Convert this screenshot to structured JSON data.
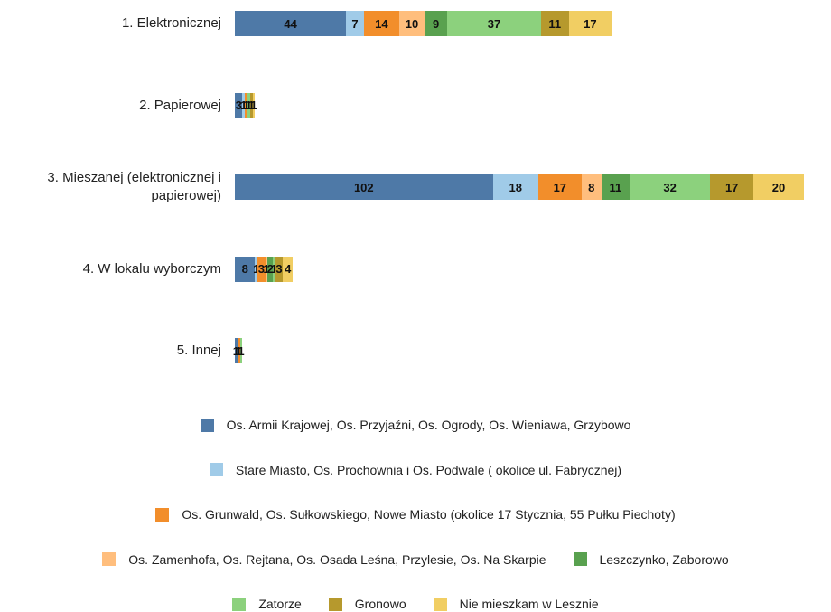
{
  "chart_data": {
    "type": "stacked-barh",
    "categories": [
      "1. Elektronicznej",
      "2. Papierowej",
      "3. Mieszanej (elektronicznej i papierowej)",
      "4. W lokalu wyborczym",
      "5. Innej"
    ],
    "series": [
      {
        "name": "Os. Armii Krajowej, Os. Przyjaźni, Os. Ogrody, Os. Wieniawa, Grzybowo",
        "color": "#4e79a7",
        "values": [
          44,
          3,
          102,
          8,
          1
        ]
      },
      {
        "name": "Stare Miasto, Os. Prochownia i Os. Podwale ( okolice ul. Fabrycznej)",
        "color": "#a0cbe8",
        "values": [
          7,
          1,
          18,
          1,
          0
        ]
      },
      {
        "name": "Os. Grunwald, Os. Sułkowskiego, Nowe Miasto (okolice 17 Stycznia, 55 Pułku Piechoty)",
        "color": "#f28e2b",
        "values": [
          14,
          1,
          17,
          3,
          1
        ]
      },
      {
        "name": "Os. Zamenhofa, Os. Rejtana, Os. Osada Leśna, Przylesie, Os. Na Skarpie",
        "color": "#ffbe7d",
        "values": [
          10,
          0,
          8,
          1,
          0
        ]
      },
      {
        "name": "Leszczynko, Zaborowo",
        "color": "#59a14f",
        "values": [
          9,
          0,
          11,
          2,
          0
        ]
      },
      {
        "name": "Zatorze",
        "color": "#8cd17d",
        "values": [
          37,
          1,
          32,
          1,
          1
        ]
      },
      {
        "name": "Gronowo",
        "color": "#b6992d",
        "values": [
          11,
          1,
          17,
          3,
          0
        ]
      },
      {
        "name": "Nie mieszkam w Lesznie",
        "color": "#f1ce63",
        "values": [
          17,
          1,
          20,
          4,
          0
        ]
      }
    ]
  }
}
